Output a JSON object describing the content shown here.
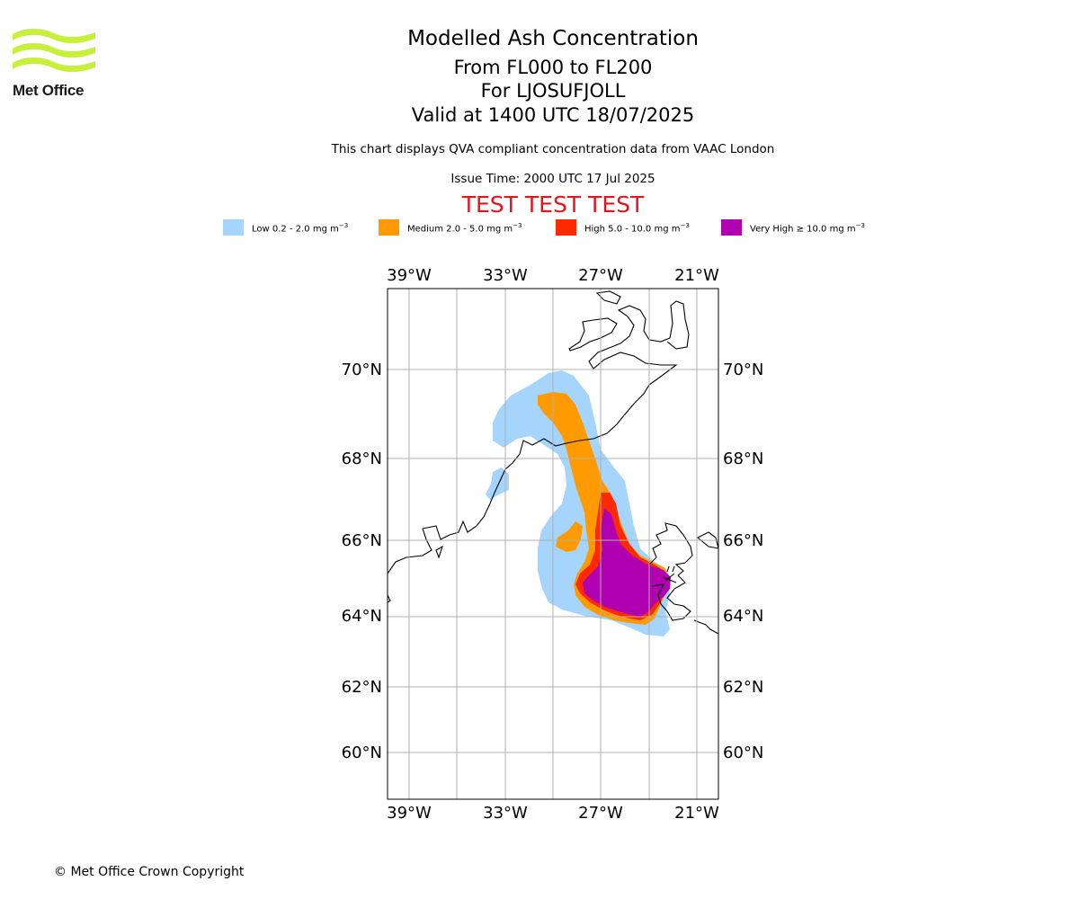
{
  "logo": {
    "text": "Met Office",
    "color": "#c6f03a"
  },
  "header": {
    "title": "Modelled Ash Concentration",
    "levels": "From FL000 to FL200",
    "volcano": "For LJOSUFJOLL",
    "valid": "Valid at 1400 UTC 18/07/2025",
    "subtitle": "This chart displays QVA compliant concentration data from VAAC London",
    "issue": "Issue Time: 2000 UTC 17 Jul 2025",
    "test": "TEST TEST TEST"
  },
  "legend": {
    "items": [
      {
        "label": "Low 0.2 - 2.0 mg m",
        "sup": "−3",
        "color": "#a5d4fc"
      },
      {
        "label": "Medium 2.0 - 5.0 mg m",
        "sup": "−3",
        "color": "#ff9b00"
      },
      {
        "label": "High 5.0 - 10.0 mg m",
        "sup": "−3",
        "color": "#ff2a00"
      },
      {
        "label": "Very High  ≥  10.0 mg m",
        "sup": "−3",
        "color": "#b000b0"
      }
    ]
  },
  "map": {
    "lon_labels": [
      "39°W",
      "33°W",
      "27°W",
      "21°W"
    ],
    "lat_labels": [
      "70°N",
      "68°N",
      "66°N",
      "64°N",
      "62°N",
      "60°N"
    ],
    "grid_color": "#b0b0b0"
  },
  "footer": {
    "copyright": "© Met Office Crown Copyright"
  }
}
